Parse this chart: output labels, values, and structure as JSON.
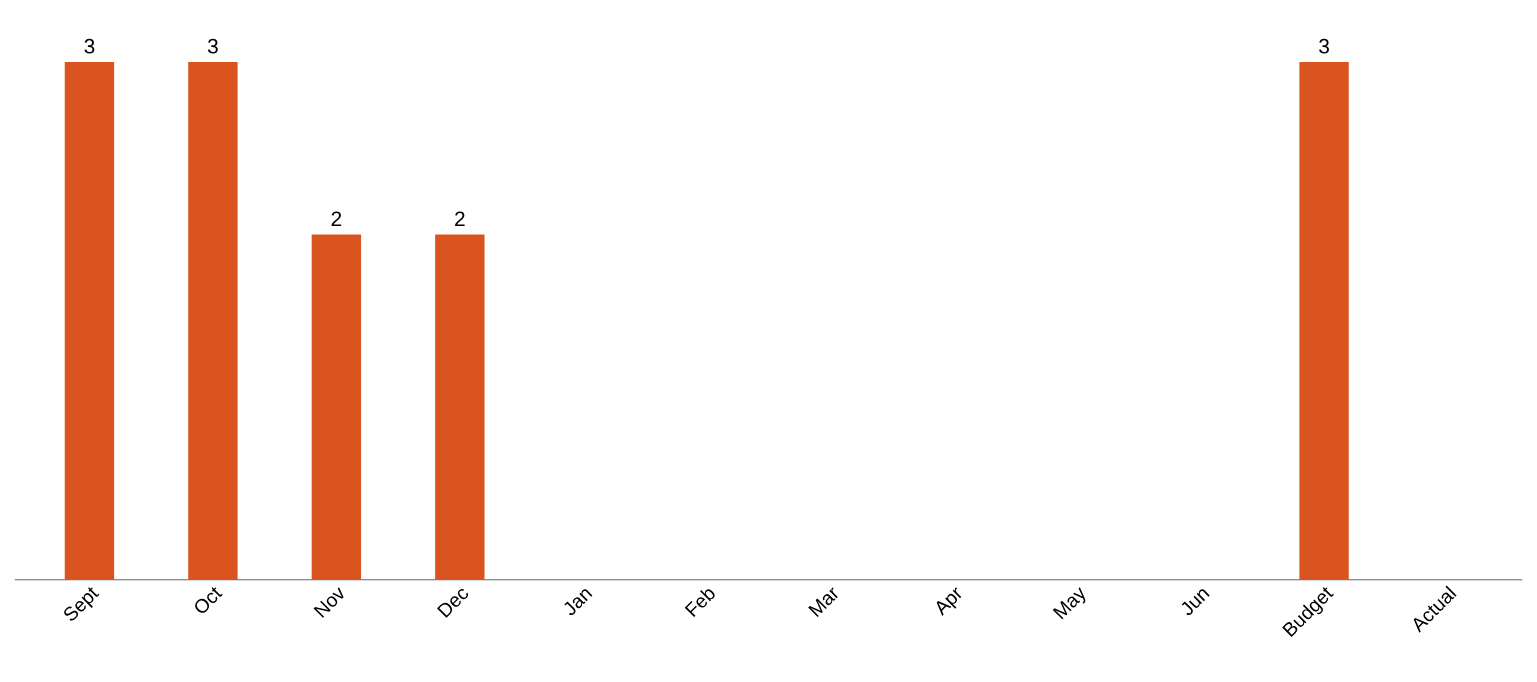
{
  "chart_data": {
    "type": "bar",
    "categories": [
      "Sept",
      "Oct",
      "Nov",
      "Dec",
      "Jan",
      "Feb",
      "Mar",
      "Apr",
      "May",
      "Jun",
      "Budget",
      "Actual"
    ],
    "values": [
      3,
      3,
      2,
      2,
      null,
      null,
      null,
      null,
      null,
      null,
      3,
      null
    ],
    "color": "#d9541e",
    "data_labels": true,
    "tick_labels": "x",
    "grid": false,
    "legend": false
  }
}
